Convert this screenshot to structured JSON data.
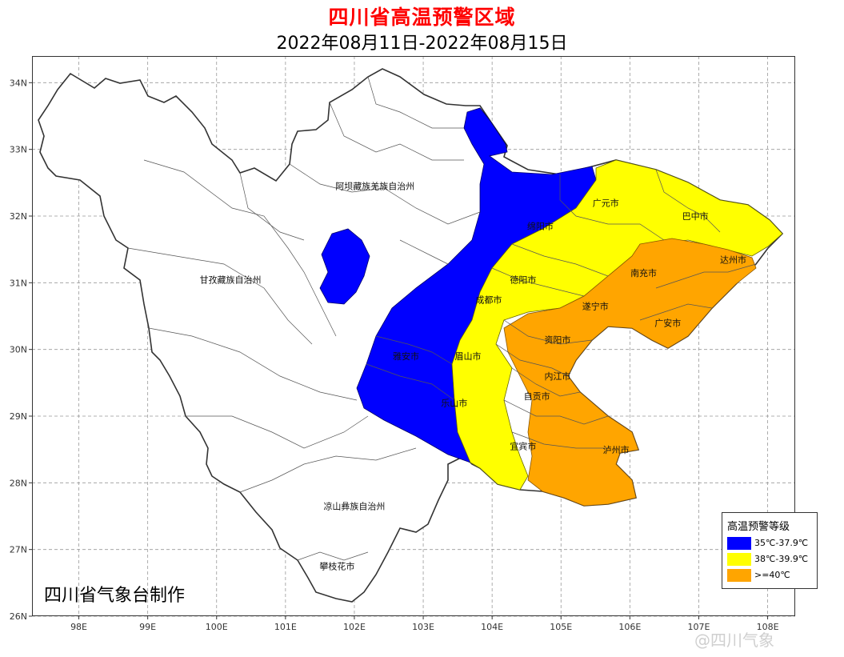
{
  "header": {
    "title": "四川省高温预警区域",
    "subtitle": "2022年08月11日-2022年08月15日"
  },
  "axes": {
    "lon_ticks": [
      "98E",
      "99E",
      "100E",
      "101E",
      "102E",
      "103E",
      "104E",
      "105E",
      "106E",
      "107E",
      "108E"
    ],
    "lat_ticks": [
      "34N",
      "33N",
      "32N",
      "31N",
      "30N",
      "29N",
      "28N",
      "27N",
      "26N"
    ]
  },
  "places": [
    {
      "name": "阿坝藏族羌族自治州",
      "lon": 102.3,
      "lat": 32.4
    },
    {
      "name": "甘孜藏族自治州",
      "lon": 100.2,
      "lat": 31.0
    },
    {
      "name": "凉山彝族自治州",
      "lon": 102.0,
      "lat": 27.6
    },
    {
      "name": "攀枝花市",
      "lon": 101.75,
      "lat": 26.7
    },
    {
      "name": "广元市",
      "lon": 105.65,
      "lat": 32.15
    },
    {
      "name": "巴中市",
      "lon": 106.95,
      "lat": 31.95
    },
    {
      "name": "绵阳市",
      "lon": 104.7,
      "lat": 31.8
    },
    {
      "name": "德阳市",
      "lon": 104.45,
      "lat": 31.0
    },
    {
      "name": "达州市",
      "lon": 107.5,
      "lat": 31.3
    },
    {
      "name": "南充市",
      "lon": 106.2,
      "lat": 31.1
    },
    {
      "name": "成都市",
      "lon": 103.95,
      "lat": 30.7
    },
    {
      "name": "遂宁市",
      "lon": 105.5,
      "lat": 30.6
    },
    {
      "name": "广安市",
      "lon": 106.55,
      "lat": 30.35
    },
    {
      "name": "资阳市",
      "lon": 104.95,
      "lat": 30.1
    },
    {
      "name": "雅安市",
      "lon": 102.75,
      "lat": 29.85
    },
    {
      "name": "眉山市",
      "lon": 103.65,
      "lat": 29.85
    },
    {
      "name": "内江市",
      "lon": 104.95,
      "lat": 29.55
    },
    {
      "name": "自贡市",
      "lon": 104.65,
      "lat": 29.25
    },
    {
      "name": "乐山市",
      "lon": 103.45,
      "lat": 29.15
    },
    {
      "name": "宜宾市",
      "lon": 104.45,
      "lat": 28.5
    },
    {
      "name": "泸州市",
      "lon": 105.8,
      "lat": 28.45
    }
  ],
  "legend": {
    "title": "高温预警等级",
    "items": [
      {
        "label": "35℃-37.9℃",
        "color": "#0000ff"
      },
      {
        "label": "38℃-39.9℃",
        "color": "#ffff00"
      },
      {
        "label": ">=40℃",
        "color": "#ffa500"
      }
    ]
  },
  "credit": "四川省气象台制作",
  "watermark": "@四川气象"
}
